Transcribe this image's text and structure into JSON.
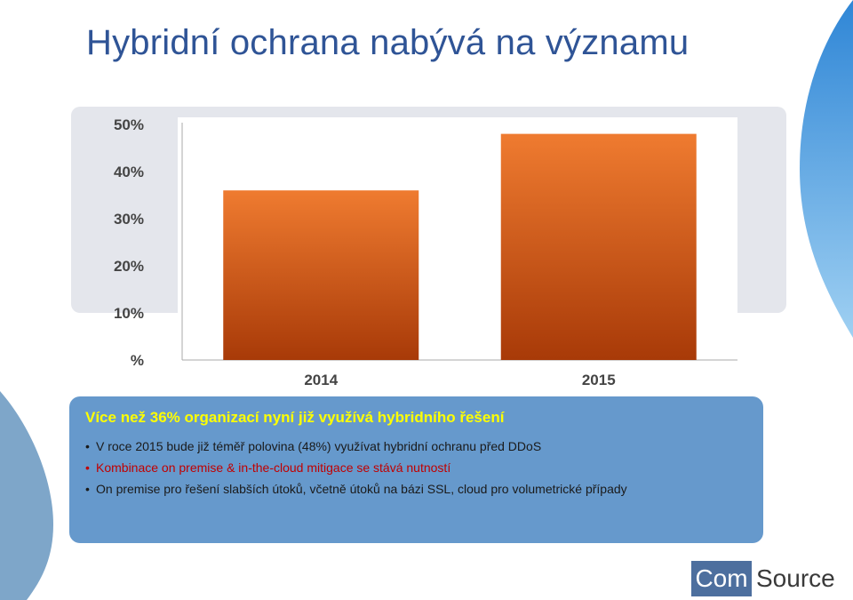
{
  "page": {
    "title": "Hybridní ochrana nabývá na významu"
  },
  "chart_data": {
    "type": "bar",
    "categories": [
      "2014",
      "2015"
    ],
    "values": [
      36,
      48
    ],
    "ylim": [
      0,
      50
    ],
    "yticks": [
      "%",
      "10%",
      "20%",
      "30%",
      "40%",
      "50%"
    ],
    "grid": false,
    "bar_colors": [
      "#e86a28",
      "#a83a08"
    ]
  },
  "info": {
    "heading": "Více než 36% organizací nyní již využívá hybridního řešení",
    "bullets": [
      {
        "text": "V roce 2015 bude již téměř polovina (48%) využívat hybridní ochranu před DDoS",
        "highlight": false
      },
      {
        "text": "Kombinace on premise & in-the-cloud mitigace se stává nutností",
        "highlight": true
      },
      {
        "text": "On premise pro řešení slabších útoků, včetně útoků na bázi SSL, cloud pro volumetrické případy",
        "highlight": false
      }
    ]
  },
  "logo": {
    "part1": "Com",
    "part2": "Source"
  },
  "colors": {
    "title": "#2f5496",
    "info_bg": "#6699cc",
    "heading": "#ffff00",
    "highlight": "#c00000",
    "decor_blue": "#3a8fd8"
  }
}
